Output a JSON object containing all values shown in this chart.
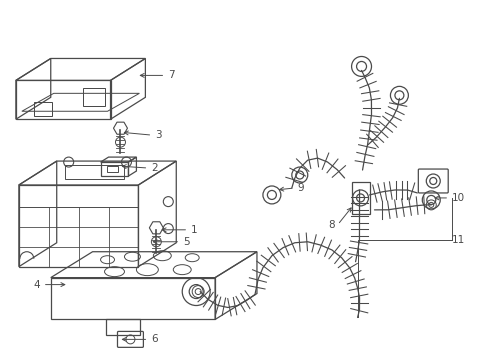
{
  "background_color": "#ffffff",
  "line_color": "#4a4a4a",
  "label_color": "#000000",
  "fig_width": 4.89,
  "fig_height": 3.6,
  "dpi": 100
}
